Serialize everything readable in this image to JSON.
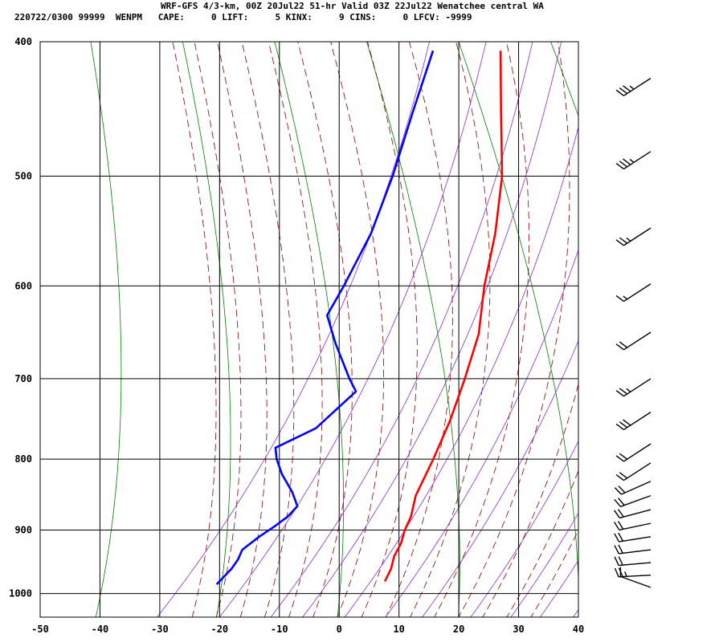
{
  "header": {
    "line1": "WRF-GFS 4/3-km, 00Z 20Jul22 51-hr Valid 03Z 22Jul22 Wenatchee central WA",
    "line2": "220722/0300 99999  WENPM   CAPE:     0 LIFT:     5 KINX:     9 CINS:     0 LFCV: -9999"
  },
  "chart_data": {
    "type": "line",
    "chart_kind": "skew-T log-P sounding",
    "x_ticks": [
      -50,
      -40,
      -30,
      -20,
      -10,
      0,
      10,
      20,
      30,
      40
    ],
    "y_ticks": [
      400,
      500,
      600,
      700,
      800,
      900,
      1000
    ],
    "xlim": [
      -50,
      40
    ],
    "ylim_hpa": [
      1040,
      400
    ],
    "y_scale": "log",
    "grid": true,
    "colors": {
      "temperature": "#ff0000",
      "dewpoint": "#0000ff",
      "dry_adiabats": "#008000",
      "moist_adiabats": "#8b0000",
      "mixing_ratio": "#8a2be2"
    },
    "series": [
      {
        "key": "temperature",
        "points": [
          [
            406,
            -24.6
          ],
          [
            450,
            -20.7
          ],
          [
            500,
            -16.2
          ],
          [
            550,
            -13.0
          ],
          [
            600,
            -10.5
          ],
          [
            650,
            -7.1
          ],
          [
            700,
            -5.1
          ],
          [
            750,
            -3.2
          ],
          [
            800,
            -1.7
          ],
          [
            850,
            -0.3
          ],
          [
            880,
            1.5
          ],
          [
            900,
            2.2
          ],
          [
            920,
            3.3
          ],
          [
            940,
            3.9
          ],
          [
            960,
            5.1
          ],
          [
            980,
            5.8
          ]
        ]
      },
      {
        "key": "dewpoint",
        "points": [
          [
            406,
            -35.9
          ],
          [
            450,
            -35.5
          ],
          [
            500,
            -34.5
          ],
          [
            550,
            -33.8
          ],
          [
            600,
            -34.0
          ],
          [
            630,
            -34.2
          ],
          [
            660,
            -30.2
          ],
          [
            700,
            -24.4
          ],
          [
            715,
            -22.0
          ],
          [
            760,
            -24.8
          ],
          [
            785,
            -29.4
          ],
          [
            800,
            -27.9
          ],
          [
            820,
            -25.3
          ],
          [
            845,
            -21.4
          ],
          [
            865,
            -18.8
          ],
          [
            880,
            -19.1
          ],
          [
            895,
            -20.1
          ],
          [
            910,
            -21.3
          ],
          [
            930,
            -22.4
          ],
          [
            945,
            -21.8
          ],
          [
            960,
            -21.6
          ],
          [
            985,
            -21.9
          ]
        ]
      }
    ],
    "wind_barbs": [
      {
        "p": 425,
        "speed_kt": 35,
        "dir_deg": 237
      },
      {
        "p": 480,
        "speed_kt": 35,
        "dir_deg": 237
      },
      {
        "p": 545,
        "speed_kt": 25,
        "dir_deg": 237
      },
      {
        "p": 598,
        "speed_kt": 15,
        "dir_deg": 237
      },
      {
        "p": 648,
        "speed_kt": 20,
        "dir_deg": 237
      },
      {
        "p": 700,
        "speed_kt": 25,
        "dir_deg": 237
      },
      {
        "p": 740,
        "speed_kt": 30,
        "dir_deg": 237
      },
      {
        "p": 780,
        "speed_kt": 20,
        "dir_deg": 237
      },
      {
        "p": 805,
        "speed_kt": 20,
        "dir_deg": 237
      },
      {
        "p": 830,
        "speed_kt": 20,
        "dir_deg": 246
      },
      {
        "p": 850,
        "speed_kt": 20,
        "dir_deg": 250
      },
      {
        "p": 870,
        "speed_kt": 20,
        "dir_deg": 255
      },
      {
        "p": 890,
        "speed_kt": 20,
        "dir_deg": 258
      },
      {
        "p": 910,
        "speed_kt": 20,
        "dir_deg": 261
      },
      {
        "p": 930,
        "speed_kt": 20,
        "dir_deg": 263
      },
      {
        "p": 950,
        "speed_kt": 20,
        "dir_deg": 265
      },
      {
        "p": 970,
        "speed_kt": 25,
        "dir_deg": 267
      },
      {
        "p": 990,
        "speed_kt": 10,
        "dir_deg": 290
      }
    ]
  }
}
